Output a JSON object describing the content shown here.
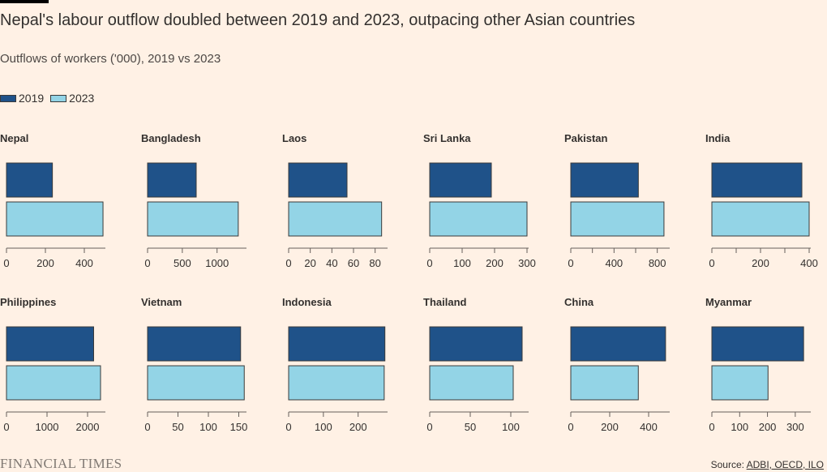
{
  "title": "Nepal's labour outflow doubled between 2019 and 2023, outpacing other Asian countries",
  "subtitle": "Outflows of workers ('000), 2019 vs 2023",
  "legend": {
    "y2019": "2019",
    "y2023": "2023"
  },
  "colors": {
    "y2019": "#1f5289",
    "y2023": "#93d4e6",
    "axis": "#66605c",
    "text": "#33302e"
  },
  "source_prefix": "Source: ",
  "source_links": "ADBI, OECD, ILO",
  "brand": "FINANCIAL TIMES",
  "chart_data": [
    {
      "type": "bar",
      "title": "Nepal",
      "series": [
        {
          "name": "2019",
          "values": [
            236
          ]
        },
        {
          "name": "2023",
          "values": [
            496
          ]
        }
      ],
      "xlim": [
        0,
        500
      ],
      "ticks": [
        0,
        200,
        400
      ],
      "tick_labels": [
        "0",
        "200",
        "400"
      ]
    },
    {
      "type": "bar",
      "title": "Bangladesh",
      "series": [
        {
          "name": "2019",
          "values": [
            700
          ]
        },
        {
          "name": "2023",
          "values": [
            1305
          ]
        }
      ],
      "xlim": [
        0,
        1400
      ],
      "ticks": [
        0,
        500,
        1000
      ],
      "tick_labels": [
        "0",
        "500",
        "1000"
      ]
    },
    {
      "type": "bar",
      "title": "Laos",
      "series": [
        {
          "name": "2019",
          "values": [
            54
          ]
        },
        {
          "name": "2023",
          "values": [
            86
          ]
        }
      ],
      "xlim": [
        0,
        90
      ],
      "ticks": [
        0,
        20,
        40,
        60,
        80
      ],
      "tick_labels": [
        "0",
        "20",
        "40",
        "60",
        "80"
      ]
    },
    {
      "type": "bar",
      "title": "Sri Lanka",
      "series": [
        {
          "name": "2019",
          "values": [
            190
          ]
        },
        {
          "name": "2023",
          "values": [
            300
          ]
        }
      ],
      "xlim": [
        0,
        300
      ],
      "ticks": [
        0,
        100,
        200,
        300
      ],
      "tick_labels": [
        "0",
        "100",
        "200",
        "300"
      ]
    },
    {
      "type": "bar",
      "title": "Pakistan",
      "series": [
        {
          "name": "2019",
          "values": [
            625
          ]
        },
        {
          "name": "2023",
          "values": [
            862
          ]
        }
      ],
      "xlim": [
        0,
        900
      ],
      "ticks": [
        0,
        200,
        400,
        600,
        800
      ],
      "tick_labels": [
        "0",
        "",
        "400",
        "",
        "800"
      ]
    },
    {
      "type": "bar",
      "title": "India",
      "series": [
        {
          "name": "2019",
          "values": [
            370
          ]
        },
        {
          "name": "2023",
          "values": [
            400
          ]
        }
      ],
      "xlim": [
        0,
        400
      ],
      "ticks": [
        0,
        100,
        200,
        300,
        400
      ],
      "tick_labels": [
        "0",
        "",
        "200",
        "",
        "400"
      ]
    },
    {
      "type": "bar",
      "title": "Philippines",
      "series": [
        {
          "name": "2019",
          "values": [
            2150
          ]
        },
        {
          "name": "2023",
          "values": [
            2320
          ]
        }
      ],
      "xlim": [
        0,
        2400
      ],
      "ticks": [
        0,
        1000,
        2000
      ],
      "tick_labels": [
        "0",
        "1000",
        "2000"
      ]
    },
    {
      "type": "bar",
      "title": "Vietnam",
      "series": [
        {
          "name": "2019",
          "values": [
            153
          ]
        },
        {
          "name": "2023",
          "values": [
            159
          ]
        }
      ],
      "xlim": [
        0,
        160
      ],
      "ticks": [
        0,
        50,
        100,
        150
      ],
      "tick_labels": [
        "0",
        "50",
        "100",
        "150"
      ]
    },
    {
      "type": "bar",
      "title": "Indonesia",
      "series": [
        {
          "name": "2019",
          "values": [
            277
          ]
        },
        {
          "name": "2023",
          "values": [
            275
          ]
        }
      ],
      "xlim": [
        0,
        280
      ],
      "ticks": [
        0,
        100,
        200
      ],
      "tick_labels": [
        "0",
        "100",
        "200"
      ]
    },
    {
      "type": "bar",
      "title": "Thailand",
      "series": [
        {
          "name": "2019",
          "values": [
            114
          ]
        },
        {
          "name": "2023",
          "values": [
            103
          ]
        }
      ],
      "xlim": [
        0,
        120
      ],
      "ticks": [
        0,
        50,
        100
      ],
      "tick_labels": [
        "0",
        "50",
        "100"
      ]
    },
    {
      "type": "bar",
      "title": "China",
      "series": [
        {
          "name": "2019",
          "values": [
            487
          ]
        },
        {
          "name": "2023",
          "values": [
            347
          ]
        }
      ],
      "xlim": [
        0,
        500
      ],
      "ticks": [
        0,
        200,
        400
      ],
      "tick_labels": [
        "0",
        "200",
        "400"
      ]
    },
    {
      "type": "bar",
      "title": "Myanmar",
      "series": [
        {
          "name": "2019",
          "values": [
            330
          ]
        },
        {
          "name": "2023",
          "values": [
            202
          ]
        }
      ],
      "xlim": [
        0,
        350
      ],
      "ticks": [
        0,
        100,
        200,
        300
      ],
      "tick_labels": [
        "0",
        "100",
        "200",
        "300"
      ]
    }
  ]
}
